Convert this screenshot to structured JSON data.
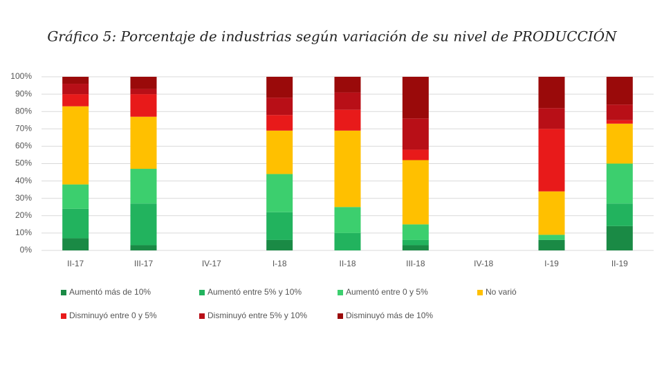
{
  "chart_data": {
    "type": "stacked-bar",
    "title": "Gráfico 5: Porcentaje de industrias según variación de su nivel de PRODUCCIÓN",
    "categories": [
      "II-17",
      "III-17",
      "IV-17",
      "I-18",
      "II-18",
      "III-18",
      "IV-18",
      "I-19",
      "II-19"
    ],
    "series": [
      {
        "name": "Aumentó más de 10%",
        "color": "#1a8a45",
        "values": [
          7,
          3,
          null,
          6,
          0,
          3,
          null,
          6,
          14
        ]
      },
      {
        "name": "Aumentó entre 5% y 10%",
        "color": "#22b35e",
        "values": [
          17,
          24,
          null,
          16,
          10,
          3,
          null,
          0,
          13
        ]
      },
      {
        "name": "Aumentó entre 0 y 5%",
        "color": "#3ccf6e",
        "values": [
          14,
          20,
          null,
          22,
          15,
          9,
          null,
          3,
          23
        ]
      },
      {
        "name": "No varió",
        "color": "#ffc000",
        "values": [
          45,
          30,
          null,
          25,
          44,
          37,
          null,
          25,
          23
        ]
      },
      {
        "name": "Disminuyó entre 0 y 5%",
        "color": "#e81a1a",
        "values": [
          7,
          13,
          null,
          9,
          12,
          6,
          null,
          36,
          2
        ]
      },
      {
        "name": "Disminuyó entre 5% y 10%",
        "color": "#b80f17",
        "values": [
          6,
          3,
          null,
          10,
          10,
          18,
          null,
          12,
          9
        ]
      },
      {
        "name": "Disminuyó más de 10%",
        "color": "#9a0a0a",
        "values": [
          4,
          7,
          null,
          12,
          9,
          24,
          null,
          18,
          16
        ]
      }
    ],
    "ylim": [
      0,
      100
    ],
    "yticks": [
      {
        "value": 0,
        "label": "0%"
      },
      {
        "value": 10,
        "label": "10%"
      },
      {
        "value": 20,
        "label": "20%"
      },
      {
        "value": 30,
        "label": "30%"
      },
      {
        "value": 40,
        "label": "40%"
      },
      {
        "value": 50,
        "label": "50%"
      },
      {
        "value": 60,
        "label": "60%"
      },
      {
        "value": 70,
        "label": "70%"
      },
      {
        "value": 80,
        "label": "80%"
      },
      {
        "value": 90,
        "label": "90%"
      },
      {
        "value": 100,
        "label": "100%"
      }
    ],
    "grid": true
  }
}
